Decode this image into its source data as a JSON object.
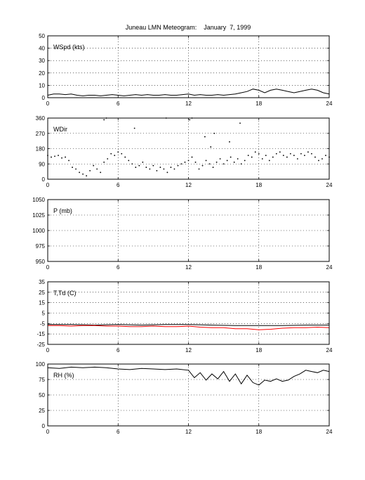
{
  "page": {
    "title": "Juneau LMN Meteogram:    January  7, 1999"
  },
  "chart_data": [
    {
      "type": "line",
      "label": "WSpd (kts)",
      "xlim": [
        0,
        24
      ],
      "ylim": [
        0,
        50
      ],
      "xticks": [
        0,
        6,
        12,
        18,
        24
      ],
      "yticks": [
        0,
        10,
        20,
        30,
        40,
        50
      ],
      "grid": true,
      "series": [
        {
          "color": "#000000",
          "style": "line",
          "x": [
            0,
            0.5,
            1,
            1.5,
            2,
            2.5,
            3,
            3.5,
            4,
            4.5,
            5,
            5.5,
            6,
            6.5,
            7,
            7.5,
            8,
            8.5,
            9,
            9.5,
            10,
            10.5,
            11,
            11.5,
            12,
            12.5,
            13,
            13.5,
            14,
            14.5,
            15,
            15.5,
            16,
            16.5,
            17,
            17.5,
            18,
            18.5,
            19,
            19.5,
            20,
            20.5,
            21,
            21.5,
            22,
            22.5,
            23,
            23.5,
            24
          ],
          "y": [
            2,
            3,
            3,
            2.5,
            3,
            2,
            1.5,
            2,
            2,
            1.5,
            2,
            2.5,
            2,
            1.5,
            2,
            2.5,
            2,
            2.5,
            2,
            2,
            2.5,
            2,
            2,
            2.5,
            3,
            2,
            2.5,
            2,
            2,
            2.5,
            2,
            2.5,
            3,
            4,
            5,
            7,
            6,
            4,
            6,
            7,
            6,
            5,
            4,
            5,
            6,
            7,
            6,
            4,
            3
          ]
        }
      ]
    },
    {
      "type": "scatter",
      "label": "WDir",
      "xlim": [
        0,
        24
      ],
      "ylim": [
        0,
        360
      ],
      "xticks": [
        0,
        6,
        12,
        18,
        24
      ],
      "yticks": [
        0,
        90,
        180,
        270,
        360
      ],
      "grid": true,
      "series": [
        {
          "color": "#000000",
          "style": "dots",
          "x": [
            0,
            0.3,
            0.6,
            0.9,
            1.2,
            1.5,
            1.8,
            2.1,
            2.4,
            2.7,
            3.0,
            3.3,
            3.6,
            3.9,
            4.2,
            4.5,
            4.8,
            5.1,
            5.4,
            5.7,
            6.0,
            6.3,
            6.6,
            6.9,
            7.2,
            7.5,
            7.8,
            8.1,
            8.4,
            8.7,
            9.0,
            9.3,
            9.6,
            9.9,
            10.2,
            10.5,
            10.8,
            11.1,
            11.4,
            11.7,
            12.0,
            12.3,
            12.6,
            12.9,
            13.2,
            13.5,
            13.8,
            14.1,
            14.4,
            14.7,
            15.0,
            15.3,
            15.6,
            15.9,
            16.2,
            16.5,
            16.8,
            17.1,
            17.4,
            17.7,
            18.0,
            18.3,
            18.6,
            18.9,
            19.2,
            19.5,
            19.8,
            20.1,
            20.4,
            20.7,
            21.0,
            21.3,
            21.6,
            21.9,
            22.2,
            22.5,
            22.8,
            23.1,
            23.4,
            23.7,
            24.0,
            4.8,
            5.0,
            7.4,
            10.1,
            12.1,
            12.3,
            13.4,
            13.9,
            14.2,
            15.5,
            16.4
          ],
          "y": [
            140,
            130,
            135,
            140,
            125,
            130,
            110,
            70,
            60,
            40,
            30,
            20,
            50,
            80,
            60,
            40,
            100,
            120,
            150,
            140,
            160,
            150,
            130,
            110,
            90,
            70,
            80,
            100,
            70,
            60,
            80,
            50,
            70,
            60,
            40,
            70,
            60,
            80,
            90,
            100,
            110,
            130,
            100,
            60,
            80,
            110,
            90,
            70,
            100,
            120,
            90,
            110,
            130,
            100,
            120,
            90,
            110,
            140,
            130,
            160,
            150,
            120,
            140,
            110,
            130,
            150,
            160,
            140,
            130,
            150,
            140,
            120,
            150,
            140,
            160,
            150,
            130,
            110,
            120,
            140,
            130,
            350,
            360,
            300,
            360,
            350,
            360,
            250,
            190,
            270,
            220,
            330
          ]
        }
      ]
    },
    {
      "type": "line",
      "label": "P (mb)",
      "xlim": [
        0,
        24
      ],
      "ylim": [
        950,
        1050
      ],
      "xticks": [
        0,
        6,
        12,
        18,
        24
      ],
      "yticks": [
        950,
        975,
        1000,
        1025,
        1050
      ],
      "grid": true,
      "series": []
    },
    {
      "type": "line",
      "label": "T,Td (C)",
      "xlim": [
        0,
        24
      ],
      "ylim": [
        -25,
        35
      ],
      "xticks": [
        0,
        6,
        12,
        18,
        24
      ],
      "yticks": [
        -25,
        -15,
        -5,
        5,
        15,
        25,
        35
      ],
      "grid": true,
      "series": [
        {
          "color": "#000000",
          "style": "line",
          "x": [
            0,
            2,
            4,
            6,
            8,
            10,
            12,
            14,
            16,
            18,
            20,
            22,
            24
          ],
          "y": [
            -6,
            -6,
            -6.5,
            -6,
            -6.5,
            -6,
            -6,
            -6.5,
            -7,
            -7,
            -7,
            -6.5,
            -6.5
          ]
        },
        {
          "color": "#ff0000",
          "style": "line",
          "x": [
            0,
            1,
            2,
            3,
            4,
            5,
            6,
            7,
            8,
            9,
            10,
            11,
            12,
            13,
            14,
            15,
            16,
            17,
            18,
            19,
            20,
            21,
            22,
            23,
            24
          ],
          "y": [
            -7,
            -7,
            -7.5,
            -7,
            -7,
            -7.5,
            -7.5,
            -8,
            -8,
            -7.5,
            -8,
            -8,
            -7.5,
            -8.5,
            -9,
            -9,
            -10,
            -10,
            -11,
            -10.5,
            -9.5,
            -9,
            -9,
            -8.5,
            -9
          ]
        }
      ]
    },
    {
      "type": "line",
      "label": "RH (%)",
      "xlim": [
        0,
        24
      ],
      "ylim": [
        0,
        100
      ],
      "xticks": [
        0,
        6,
        12,
        18,
        24
      ],
      "yticks": [
        0,
        25,
        50,
        75,
        100
      ],
      "grid": true,
      "series": [
        {
          "color": "#000000",
          "style": "line",
          "x": [
            0,
            1,
            2,
            3,
            4,
            5,
            6,
            7,
            8,
            9,
            10,
            11,
            12,
            12.5,
            13,
            13.5,
            14,
            14.5,
            15,
            15.5,
            16,
            16.5,
            17,
            17.5,
            18,
            18.5,
            19,
            19.5,
            20,
            20.5,
            21,
            21.5,
            22,
            22.5,
            23,
            23.5,
            24
          ],
          "y": [
            94,
            93,
            95,
            94,
            95,
            94,
            92,
            91,
            93,
            92,
            91,
            92,
            90,
            78,
            86,
            74,
            84,
            76,
            88,
            72,
            84,
            68,
            82,
            70,
            66,
            74,
            72,
            76,
            72,
            74,
            80,
            84,
            90,
            88,
            86,
            90,
            88
          ]
        }
      ]
    }
  ]
}
